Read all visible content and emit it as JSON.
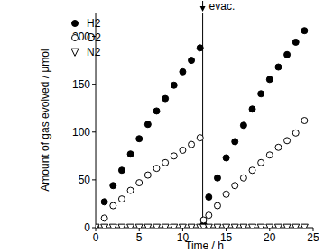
{
  "chart_data": {
    "type": "scatter",
    "xlabel": "Time / h",
    "ylabel": "Amount of gas evolved / µmol",
    "x": [
      0,
      1,
      2,
      3,
      4,
      5,
      6,
      7,
      8,
      9,
      10,
      11,
      12,
      12.4,
      13,
      14,
      15,
      16,
      17,
      18,
      19,
      20,
      21,
      22,
      23,
      24
    ],
    "series": [
      {
        "name": "H2",
        "color": "#000000",
        "marker": "circle",
        "values": [
          0,
          27,
          44,
          60,
          77,
          93,
          108,
          122,
          135,
          149,
          163,
          175,
          188,
          3,
          32,
          52,
          73,
          90,
          107,
          124,
          140,
          155,
          168,
          181,
          194,
          206
        ]
      },
      {
        "name": "O2",
        "color": "#000000",
        "marker": "open_circle",
        "values": [
          0,
          10,
          23,
          30,
          39,
          47,
          55,
          62,
          68,
          75,
          81,
          87,
          94,
          8,
          13,
          23,
          35,
          44,
          52,
          60,
          68,
          76,
          84,
          91,
          99,
          112
        ]
      },
      {
        "name": "N2",
        "color": "#000000",
        "marker": "open_triangle_down",
        "values": [
          0,
          0,
          0,
          0,
          0,
          0,
          0,
          0,
          0,
          0,
          0,
          0,
          0,
          0,
          0,
          0,
          0,
          0,
          0,
          0,
          0,
          0,
          0,
          0,
          0,
          0
        ]
      }
    ],
    "xlim": [
      0,
      25
    ],
    "xticks": [
      0,
      5,
      10,
      15,
      20,
      25
    ],
    "ylim": [
      0,
      225
    ],
    "yticks": [
      0,
      50,
      100,
      150,
      200
    ],
    "annotations": [
      {
        "text": "evac.",
        "x": 12.3
      }
    ],
    "grid": false,
    "legend": "upper left"
  }
}
